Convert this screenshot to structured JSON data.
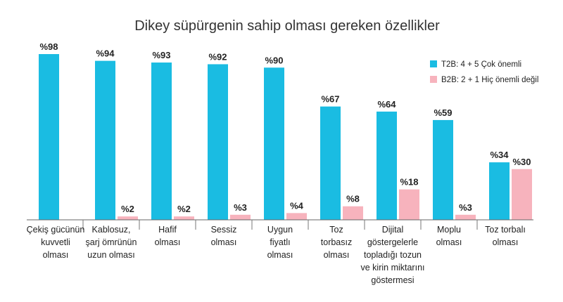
{
  "chart_data": {
    "type": "bar",
    "title": "Dikey süpürgenin sahip olması gereken özellikler",
    "xlabel": "",
    "ylabel": "",
    "ylim": [
      0,
      100
    ],
    "grid": false,
    "legend_position": "top-right",
    "value_prefix": "%",
    "categories": [
      [
        "Çekiş gücünün",
        "kuvvetli",
        "olması"
      ],
      [
        "Kablosuz,",
        "şarj ömrünün",
        "uzun olması"
      ],
      [
        "Hafif",
        "olması"
      ],
      [
        "Sessiz",
        "olması"
      ],
      [
        "Uygun",
        "fiyatlı",
        "olması"
      ],
      [
        "Toz",
        "torbasız",
        "olması"
      ],
      [
        "Dijital",
        "göstergelerle",
        "topladığı tozun",
        "ve kirin miktarını",
        "göstermesi"
      ],
      [
        "Moplu",
        "olması"
      ],
      [
        "Toz torbalı",
        "olması"
      ]
    ],
    "series": [
      {
        "name": "T2B: 4 + 5 Çok önemli",
        "color": "#1ABCE2",
        "values": [
          98,
          94,
          93,
          92,
          90,
          67,
          64,
          59,
          34
        ]
      },
      {
        "name": "B2B: 2 + 1 Hiç önemli değil",
        "color": "#F7B3BD",
        "values": [
          null,
          2,
          2,
          3,
          4,
          8,
          18,
          3,
          30
        ]
      }
    ]
  }
}
